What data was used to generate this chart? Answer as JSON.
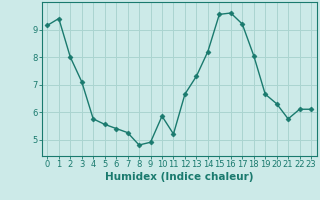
{
  "x": [
    0,
    1,
    2,
    3,
    4,
    5,
    6,
    7,
    8,
    9,
    10,
    11,
    12,
    13,
    14,
    15,
    16,
    17,
    18,
    19,
    20,
    21,
    22,
    23
  ],
  "y": [
    9.15,
    9.4,
    8.0,
    7.1,
    5.75,
    5.55,
    5.4,
    5.25,
    4.8,
    4.9,
    5.85,
    5.2,
    6.65,
    7.3,
    8.2,
    9.55,
    9.6,
    9.2,
    8.05,
    6.65,
    6.3,
    5.75,
    6.1,
    6.1
  ],
  "line_color": "#1a7a6e",
  "marker": "D",
  "marker_size": 2.5,
  "background_color": "#cceae8",
  "grid_color": "#aad4d0",
  "axis_color": "#1a7a6e",
  "xlabel": "Humidex (Indice chaleur)",
  "xlabel_fontsize": 7.5,
  "tick_fontsize": 6,
  "ylim": [
    4.4,
    10.0
  ],
  "xlim": [
    -0.5,
    23.5
  ],
  "yticks": [
    5,
    6,
    7,
    8,
    9
  ],
  "xticks": [
    0,
    1,
    2,
    3,
    4,
    5,
    6,
    7,
    8,
    9,
    10,
    11,
    12,
    13,
    14,
    15,
    16,
    17,
    18,
    19,
    20,
    21,
    22,
    23
  ],
  "linewidth": 1.0
}
